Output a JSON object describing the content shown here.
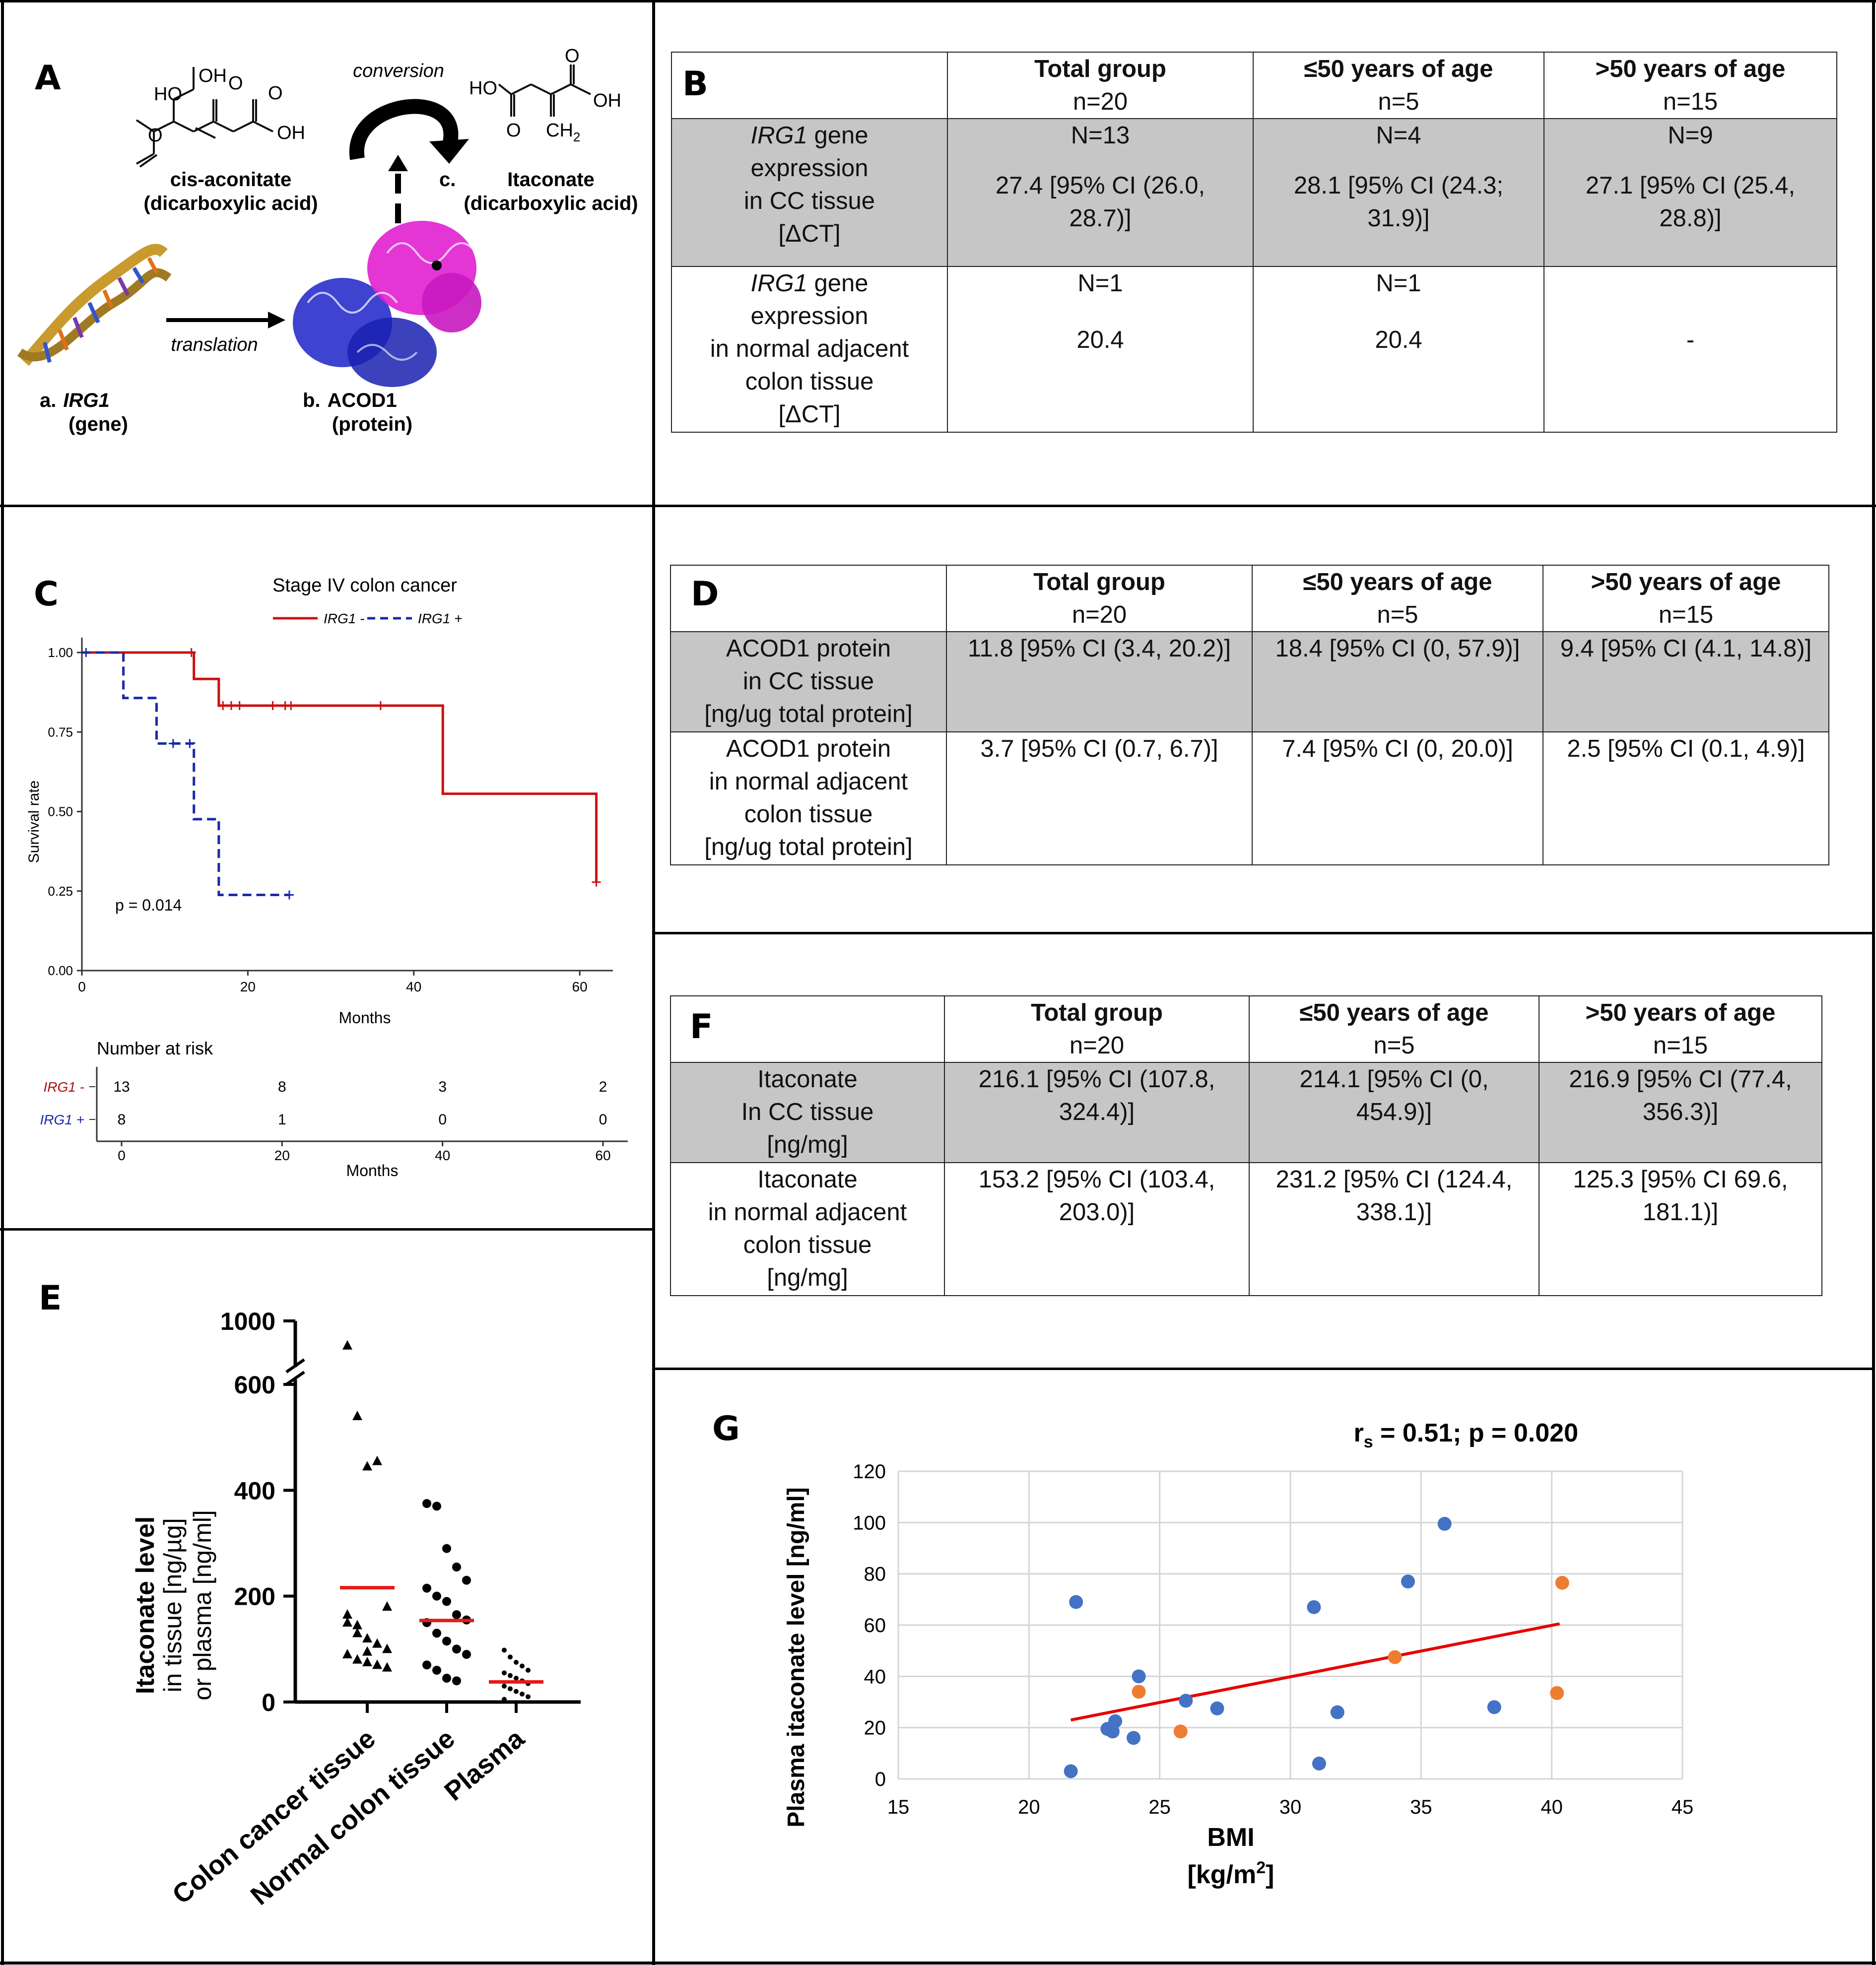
{
  "panels": {
    "a": "A",
    "b": "B",
    "c": "C",
    "d": "D",
    "e": "E",
    "f": "F",
    "g": "G"
  },
  "panel_a": {
    "cis_label": "cis-aconitate",
    "cis_sub": "(dicarboxylic acid)",
    "ita_label": "Itaconate",
    "ita_sub": "(dicarboxylic acid)",
    "conversion": "conversion",
    "translation": "translation",
    "gene_letter": "a.",
    "gene_name": "IRG1",
    "gene_sub": "(gene)",
    "protein_letter": "b.",
    "protein_name": "ACOD1",
    "protein_sub": "(protein)",
    "ita_letter": "c.",
    "chem": {
      "ho": "HO",
      "oh": "OH",
      "o": "O",
      "ch2": "CH",
      "sub2": "2"
    }
  },
  "panel_b": {
    "headers": [
      {
        "title": "Total group",
        "n": "n=20"
      },
      {
        "title": "≤50 years of age",
        "n": "n=5"
      },
      {
        "title": ">50 years of age",
        "n": "n=15"
      }
    ],
    "row1": {
      "gene": "IRG1",
      "label_rest": [
        " gene",
        "expression",
        "in CC tissue",
        "[ΔCT]"
      ],
      "cells": [
        {
          "n": "N=13",
          "v1": "27.4 [95% CI (26.0,",
          "v2": "28.7)]"
        },
        {
          "n": "N=4",
          "v1": "28.1 [95% CI (24.3;",
          "v2": "31.9)]"
        },
        {
          "n": "N=9",
          "v1": "27.1 [95% CI (25.4,",
          "v2": "28.8)]"
        }
      ]
    },
    "row2": {
      "gene": "IRG1",
      "label_rest": [
        " gene",
        "expression",
        "in normal adjacent",
        "colon tissue",
        "[ΔCT]"
      ],
      "cells": [
        {
          "n": "N=1",
          "v1": "20.4"
        },
        {
          "n": "N=1",
          "v1": "20.4"
        },
        {
          "n": "",
          "v1": "-"
        }
      ]
    }
  },
  "panel_d": {
    "headers": [
      {
        "title": "Total group",
        "n": "n=20"
      },
      {
        "title": "≤50 years of age",
        "n": "n=5"
      },
      {
        "title": ">50 years of age",
        "n": "n=15"
      }
    ],
    "row1": {
      "label": [
        "ACOD1 protein",
        "in CC tissue",
        "[ng/ug total protein]"
      ],
      "cells": [
        "11.8 [95% CI (3.4, 20.2)]",
        "18.4 [95% CI (0, 57.9)]",
        "9.4 [95% CI (4.1, 14.8)]"
      ]
    },
    "row2": {
      "label": [
        "ACOD1 protein",
        "in normal adjacent",
        "colon tissue",
        "[ng/ug total protein]"
      ],
      "cells": [
        "3.7 [95% CI (0.7, 6.7)]",
        "7.4 [95% CI (0, 20.0)]",
        "2.5 [95% CI (0.1, 4.9)]"
      ]
    }
  },
  "panel_f": {
    "headers": [
      {
        "title": "Total group",
        "n": "n=20"
      },
      {
        "title": "≤50 years of age",
        "n": "n=5"
      },
      {
        "title": ">50 years of age",
        "n": "n=15"
      }
    ],
    "row1": {
      "label": [
        "Itaconate",
        "In CC tissue",
        "[ng/mg]"
      ],
      "cells": [
        {
          "v1": "216.1 [95% CI (107.8,",
          "v2": "324.4)]"
        },
        {
          "v1": "214.1 [95% CI (0,",
          "v2": "454.9)]"
        },
        {
          "v1": "216.9 [95% CI (77.4,",
          "v2": "356.3)]"
        }
      ]
    },
    "row2": {
      "label": [
        "Itaconate",
        "in normal adjacent",
        "colon tissue",
        "[ng/mg]"
      ],
      "cells": [
        {
          "v1": "153.2 [95% CI (103.4,",
          "v2": "203.0)]"
        },
        {
          "v1": "231.2 [95% CI (124.4,",
          "v2": "338.1)]"
        },
        {
          "v1": "125.3 [95% CI 69.6,",
          "v2": "181.1)]"
        }
      ]
    }
  },
  "chart_data": [
    {
      "id": "C",
      "type": "line",
      "title": "Stage IV colon cancer",
      "xlabel": "Months",
      "ylabel": "Survival rate",
      "xlim": [
        0,
        64
      ],
      "ylim": [
        0,
        1
      ],
      "xticks": [
        0,
        20,
        40,
        60
      ],
      "yticks": [
        "0.00",
        "0.25",
        "0.50",
        "0.75",
        "1.00"
      ],
      "p_value_text": "p = 0.014",
      "series": [
        {
          "name": "IRG1 -",
          "color": "#cc1111",
          "style": "solid",
          "steps": [
            [
              0,
              1.0
            ],
            [
              13.5,
              1.0
            ],
            [
              13.5,
              0.917
            ],
            [
              16.5,
              0.917
            ],
            [
              16.5,
              0.833
            ],
            [
              43.5,
              0.833
            ],
            [
              43.5,
              0.556
            ],
            [
              62,
              0.556
            ],
            [
              62,
              0.278
            ]
          ],
          "censor": [
            [
              13.2,
              1.0
            ],
            [
              17,
              0.833
            ],
            [
              18,
              0.833
            ],
            [
              19,
              0.833
            ],
            [
              23,
              0.833
            ],
            [
              24.5,
              0.833
            ],
            [
              25.2,
              0.833
            ],
            [
              36,
              0.833
            ],
            [
              62,
              0.278
            ]
          ]
        },
        {
          "name": "IRG1 +",
          "color": "#1a2aa8",
          "style": "dashed",
          "steps": [
            [
              0,
              1.0
            ],
            [
              5,
              1.0
            ],
            [
              5,
              0.857
            ],
            [
              9,
              0.857
            ],
            [
              9,
              0.714
            ],
            [
              13.5,
              0.714
            ],
            [
              13.5,
              0.476
            ],
            [
              16.5,
              0.476
            ],
            [
              16.5,
              0.238
            ],
            [
              25,
              0.238
            ]
          ],
          "censor": [
            [
              0.5,
              1.0
            ],
            [
              11,
              0.714
            ],
            [
              13,
              0.714
            ],
            [
              25,
              0.238
            ]
          ]
        }
      ],
      "risk_table": {
        "title": "Number at risk",
        "xlabel": "Months",
        "xticks": [
          "0",
          "20",
          "40",
          "60"
        ],
        "rows": [
          {
            "label": "IRG1 -",
            "color": "#aa1111",
            "values": [
              "13",
              "8",
              "3",
              "2"
            ]
          },
          {
            "label": "IRG1 +",
            "color": "#1a2aa8",
            "values": [
              "8",
              "1",
              "0",
              "0"
            ]
          }
        ]
      }
    },
    {
      "id": "E",
      "type": "scatter",
      "ylabel_main": "Itaconate level",
      "ylabel_sub1": "in tissue [ng/µg]",
      "ylabel_sub2": "or plasma [ng/ml]",
      "yticks_low": [
        "0",
        "200",
        "400",
        "600"
      ],
      "ytick_high": "1000",
      "categories": [
        "Colon cancer tissue",
        "Normal colon tissue",
        "Plasma"
      ],
      "means": [
        216,
        154,
        38
      ],
      "groups": [
        {
          "marker": "triangle",
          "values": [
            940,
            540,
            445,
            455,
            180,
            150,
            145,
            120,
            110,
            100,
            90,
            80,
            75,
            70,
            65,
            165,
            130,
            95
          ]
        },
        {
          "marker": "circle",
          "values": [
            375,
            370,
            290,
            255,
            230,
            215,
            200,
            190,
            165,
            155,
            150,
            130,
            115,
            100,
            90,
            70,
            60,
            45,
            40
          ]
        },
        {
          "marker": "small-circle",
          "values": [
            98,
            85,
            75,
            68,
            60,
            55,
            50,
            45,
            40,
            35,
            30,
            25,
            20,
            15,
            10,
            5
          ]
        }
      ]
    },
    {
      "id": "G",
      "type": "scatter",
      "xlabel": "BMI",
      "xlabel2": "[kg/m",
      "xlabel2_sup": "2",
      "xlabel2_end": "]",
      "ylabel": "Plasma itaconate level [ng/ml]",
      "xlim": [
        15,
        45
      ],
      "ylim": [
        0,
        120
      ],
      "xticks": [
        15,
        20,
        25,
        30,
        35,
        40,
        45
      ],
      "yticks": [
        0,
        20,
        40,
        60,
        80,
        100,
        120
      ],
      "stat_r": "r",
      "stat_sub": "s",
      "stat_rest": " = 0.51; p = 0.020",
      "series": [
        {
          "name": "blue",
          "color": "#4472c4",
          "points": [
            [
              21.8,
              69
            ],
            [
              24.2,
              40
            ],
            [
              23.0,
              19.5
            ],
            [
              23.3,
              22.5
            ],
            [
              23.2,
              18.5
            ],
            [
              24.0,
              16
            ],
            [
              26.0,
              30.5
            ],
            [
              27.2,
              27.5
            ],
            [
              21.6,
              3
            ],
            [
              30.9,
              67
            ],
            [
              31.1,
              6
            ],
            [
              31.8,
              26
            ],
            [
              34.5,
              77
            ],
            [
              35.9,
              99.5
            ],
            [
              37.8,
              28
            ]
          ]
        },
        {
          "name": "orange",
          "color": "#ed7d31",
          "points": [
            [
              24.2,
              34
            ],
            [
              25.8,
              18.5
            ],
            [
              34.0,
              47.5
            ],
            [
              40.4,
              76.5
            ],
            [
              40.2,
              33.5
            ]
          ]
        }
      ],
      "trendline": {
        "color": "#e60000",
        "from": [
          21.6,
          23
        ],
        "to": [
          40.3,
          60.5
        ]
      }
    }
  ]
}
